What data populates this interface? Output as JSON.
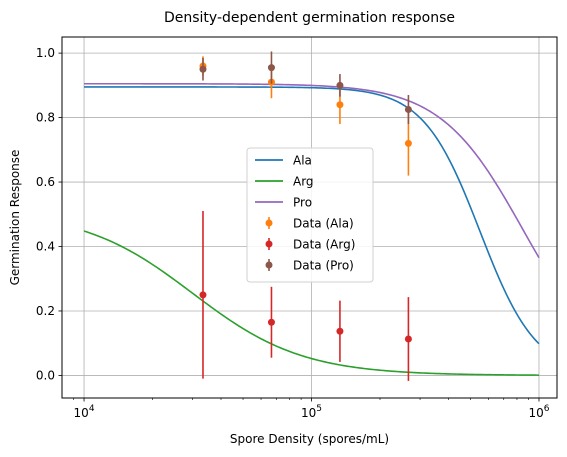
{
  "chart_data": {
    "type": "line",
    "title": "Density-dependent germination response",
    "xlabel": "Spore Density (spores/mL)",
    "ylabel": "Germination Response",
    "xscale": "log",
    "xlim": [
      8000,
      1200000
    ],
    "ylim": [
      -0.07,
      1.05
    ],
    "grid": true,
    "legend_position": "center",
    "x_ticks": [
      {
        "value": 10000,
        "base": "10",
        "exp": "4"
      },
      {
        "value": 100000,
        "base": "10",
        "exp": "5"
      },
      {
        "value": 1000000,
        "base": "10",
        "exp": "6"
      }
    ],
    "y_ticks": [
      {
        "value": 0.0,
        "label": "0.0"
      },
      {
        "value": 0.2,
        "label": "0.2"
      },
      {
        "value": 0.4,
        "label": "0.4"
      },
      {
        "value": 0.6,
        "label": "0.6"
      },
      {
        "value": 0.8,
        "label": "0.8"
      },
      {
        "value": 1.0,
        "label": "1.0"
      }
    ],
    "curves": [
      {
        "name": "Ala",
        "color": "#1f77b4",
        "top": 0.895,
        "ec50": 550000,
        "hill": 3.5
      },
      {
        "name": "Arg",
        "color": "#2ca02c",
        "top": 0.51,
        "ec50": 30000,
        "hill": 1.8
      },
      {
        "name": "Pro",
        "color": "#9467bd",
        "top": 0.905,
        "ec50": 850000,
        "hill": 2.4
      }
    ],
    "data_series": [
      {
        "name": "Data (Ala)",
        "color": "#ff7f0e",
        "x": [
          33333,
          66667,
          133333,
          266667
        ],
        "y": [
          0.96,
          0.91,
          0.84,
          0.72
        ],
        "err": [
          0.03,
          0.05,
          0.06,
          0.1
        ]
      },
      {
        "name": "Data (Arg)",
        "color": "#d62728",
        "x": [
          33333,
          66667,
          133333,
          266667
        ],
        "y": [
          0.25,
          0.165,
          0.137,
          0.113
        ],
        "err": [
          0.26,
          0.11,
          0.095,
          0.13
        ]
      },
      {
        "name": "Data (Pro)",
        "color": "#8c564b",
        "x": [
          33333,
          66667,
          133333,
          266667
        ],
        "y": [
          0.95,
          0.955,
          0.9,
          0.825
        ],
        "err": [
          0.035,
          0.05,
          0.035,
          0.045
        ]
      }
    ]
  }
}
